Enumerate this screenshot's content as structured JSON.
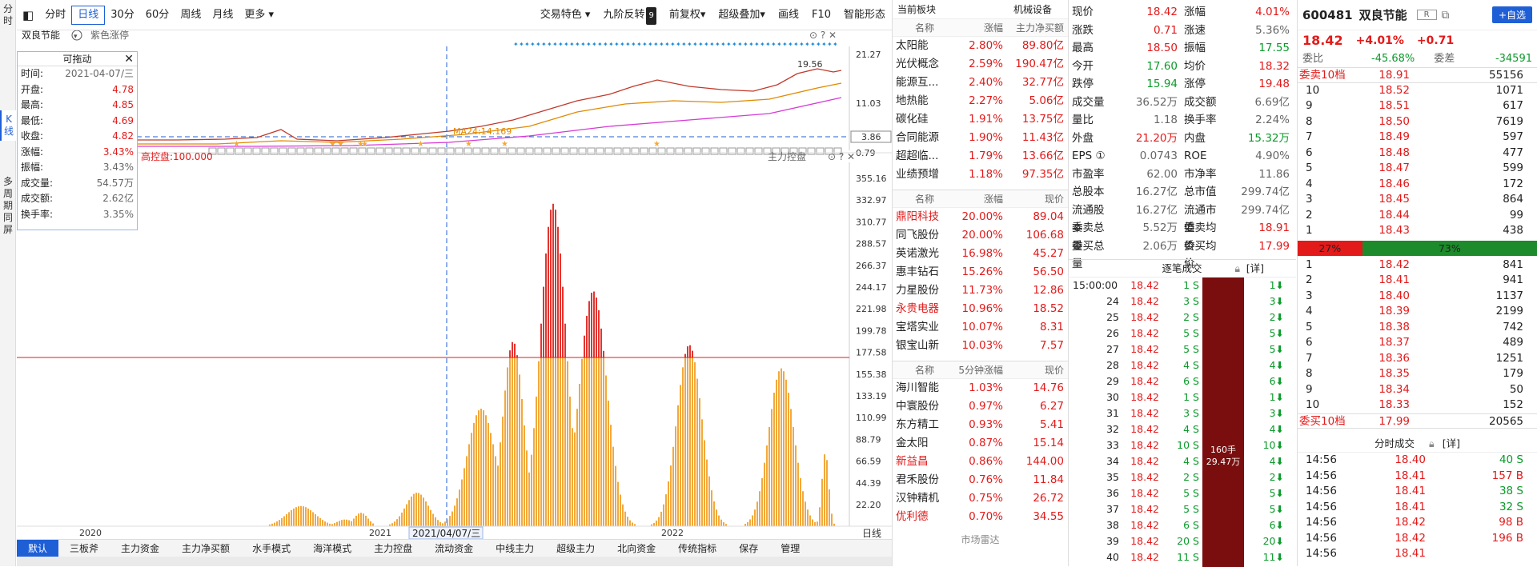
{
  "vtabs": [
    "分时",
    "K线",
    "多周期同屏"
  ],
  "toolbar": {
    "items": [
      "分时",
      "日线",
      "30分",
      "60分",
      "周线",
      "月线",
      "更多"
    ],
    "active": "日线",
    "right": [
      "交易特色",
      "九阶反转",
      "前复权",
      "超级叠加",
      "画线",
      "F10",
      "智能形态"
    ],
    "badge": "9"
  },
  "chart": {
    "stock_name": "双良节能",
    "color_mode": "紫色涨停",
    "price_labels": [
      "21.27",
      "11.03",
      "3.86",
      "0.79"
    ],
    "high_label": "19.56",
    "ma_label": "MA24:14.169",
    "vol_title": "主力控盘",
    "vol_high": "高控盘:100.000",
    "vol_labels": [
      "355.16",
      "332.97",
      "310.77",
      "288.57",
      "266.37",
      "244.17",
      "221.98",
      "199.78",
      "177.58",
      "155.38",
      "133.19",
      "110.99",
      "88.79",
      "66.59",
      "44.39",
      "22.20"
    ],
    "xlabels": [
      "2020",
      "2021",
      "2022"
    ],
    "crosshair_date": "2021/04/07/三",
    "period": "日线"
  },
  "infobox": {
    "title": "可拖动",
    "rows": [
      [
        "时间:",
        "2021-04-07/三",
        "gray"
      ],
      [
        "开盘:",
        "4.78",
        "red"
      ],
      [
        "最高:",
        "4.85",
        "red"
      ],
      [
        "最低:",
        "4.69",
        "red"
      ],
      [
        "收盘:",
        "4.82",
        "red"
      ],
      [
        "涨幅:",
        "3.43%",
        "red"
      ],
      [
        "振幅:",
        "3.43%",
        "gray"
      ],
      [
        "成交量:",
        "54.57万",
        "gray"
      ],
      [
        "成交额:",
        "2.62亿",
        "gray"
      ],
      [
        "换手率:",
        "3.35%",
        "gray"
      ]
    ]
  },
  "bottomtabs": [
    "默认",
    "三板斧",
    "主力资金",
    "主力净买额",
    "水手模式",
    "海洋模式",
    "主力控盘",
    "流动资金",
    "中线主力",
    "超级主力",
    "北向资金",
    "传统指标",
    "保存",
    "管理"
  ],
  "sectors": {
    "title": "当前板块",
    "industry": "机械设备",
    "headers": [
      "名称",
      "涨幅",
      "主力净买额"
    ],
    "rows": [
      [
        "太阳能",
        "2.80%",
        "89.80亿"
      ],
      [
        "光伏概念",
        "2.59%",
        "190.47亿"
      ],
      [
        "能源互...",
        "2.40%",
        "32.77亿"
      ],
      [
        "地热能",
        "2.27%",
        "5.06亿"
      ],
      [
        "碳化硅",
        "1.91%",
        "13.75亿"
      ],
      [
        "合同能源",
        "1.90%",
        "11.43亿"
      ],
      [
        "超超临...",
        "1.79%",
        "13.66亿"
      ],
      [
        "业绩预增",
        "1.18%",
        "97.35亿"
      ]
    ]
  },
  "leaders": {
    "headers": [
      "名称",
      "涨幅",
      "现价"
    ],
    "rows": [
      [
        "鼎阳科技",
        "20.00%",
        "89.04",
        "red"
      ],
      [
        "同飞股份",
        "20.00%",
        "106.68",
        ""
      ],
      [
        "英诺激光",
        "16.98%",
        "45.27",
        ""
      ],
      [
        "惠丰钻石",
        "15.26%",
        "56.50",
        ""
      ],
      [
        "力星股份",
        "11.73%",
        "12.86",
        ""
      ],
      [
        "永贵电器",
        "10.96%",
        "18.52",
        "red"
      ],
      [
        "宝塔实业",
        "10.07%",
        "8.31",
        ""
      ],
      [
        "银宝山新",
        "10.03%",
        "7.57",
        ""
      ]
    ]
  },
  "fivemin": {
    "headers": [
      "名称",
      "5分钟涨幅",
      "现价"
    ],
    "rows": [
      [
        "海川智能",
        "1.03%",
        "14.76",
        ""
      ],
      [
        "中寰股份",
        "0.97%",
        "6.27",
        ""
      ],
      [
        "东方精工",
        "0.93%",
        "5.41",
        ""
      ],
      [
        "金太阳",
        "0.87%",
        "15.14",
        ""
      ],
      [
        "新益昌",
        "0.86%",
        "144.00",
        "red"
      ],
      [
        "君禾股份",
        "0.76%",
        "11.84",
        ""
      ],
      [
        "汉钟精机",
        "0.75%",
        "26.72",
        ""
      ],
      [
        "优利德",
        "0.70%",
        "34.55",
        "red"
      ]
    ]
  },
  "sector_footer": "市场雷达",
  "quote": [
    [
      "现价",
      "18.42",
      "red",
      "涨幅",
      "4.01%",
      "red"
    ],
    [
      "涨跌",
      "0.71",
      "red",
      "涨速",
      "5.36%",
      "gray"
    ],
    [
      "最高",
      "18.50",
      "red",
      "振幅",
      "17.55",
      "green"
    ],
    [
      "今开",
      "17.60",
      "green",
      "均价",
      "18.32",
      "red"
    ],
    [
      "跌停",
      "15.94",
      "green",
      "涨停",
      "19.48",
      "red"
    ],
    [
      "成交量",
      "36.52万",
      "gray",
      "成交额",
      "6.69亿",
      "gray"
    ],
    [
      "量比",
      "1.18",
      "gray",
      "换手率",
      "2.24%",
      "gray"
    ],
    [
      "外盘",
      "21.20万",
      "red",
      "内盘",
      "15.32万",
      "green"
    ],
    [
      "EPS ①",
      "0.0743",
      "gray",
      "ROE",
      "4.90%",
      "gray"
    ],
    [
      "市盈率",
      "62.00",
      "gray",
      "市净率",
      "11.86",
      "gray"
    ],
    [
      "总股本",
      "16.27亿",
      "gray",
      "总市值",
      "299.74亿",
      "gray"
    ],
    [
      "流通股本",
      "16.27亿",
      "gray",
      "流通市值",
      "299.74亿",
      "gray"
    ],
    [
      "委卖总量",
      "5.52万",
      "gray",
      "委卖均价",
      "18.91",
      "red"
    ],
    [
      "委买总量",
      "2.06万",
      "gray",
      "委买均价",
      "17.99",
      "red"
    ]
  ],
  "ticks": {
    "title": "逐笔成交",
    "detail": "[详]",
    "bar_label": "160手",
    "bar_value": "29.47万",
    "rows": [
      [
        "15:00:00",
        "18.42",
        "1 S",
        "1"
      ],
      [
        "24",
        "18.42",
        "3 S",
        "3"
      ],
      [
        "25",
        "18.42",
        "2 S",
        "2"
      ],
      [
        "26",
        "18.42",
        "5 S",
        "5"
      ],
      [
        "27",
        "18.42",
        "5 S",
        "5"
      ],
      [
        "28",
        "18.42",
        "4 S",
        "4"
      ],
      [
        "29",
        "18.42",
        "6 S",
        "6"
      ],
      [
        "30",
        "18.42",
        "1 S",
        "1"
      ],
      [
        "31",
        "18.42",
        "3 S",
        "3"
      ],
      [
        "32",
        "18.42",
        "4 S",
        "4"
      ],
      [
        "33",
        "18.42",
        "10 S",
        "10"
      ],
      [
        "34",
        "18.42",
        "4 S",
        "4"
      ],
      [
        "35",
        "18.42",
        "2 S",
        "2"
      ],
      [
        "36",
        "18.42",
        "5 S",
        "5"
      ],
      [
        "37",
        "18.42",
        "5 S",
        "5"
      ],
      [
        "38",
        "18.42",
        "6 S",
        "6"
      ],
      [
        "39",
        "18.42",
        "20 S",
        "20"
      ],
      [
        "40",
        "18.42",
        "11 S",
        "11"
      ]
    ]
  },
  "stock": {
    "code": "600481",
    "name": "双良节能",
    "tag": "R",
    "add_btn": "+自选",
    "price": "18.42",
    "pct": "+4.01%",
    "chg": "+0.71",
    "webi_label": "委比",
    "webi": "-45.68%",
    "weicha_label": "委差",
    "weicha": "-34591"
  },
  "sell10": {
    "label": "委卖10档",
    "price": "18.91",
    "vol": "55156"
  },
  "asks": [
    [
      "10",
      "18.52",
      "1071"
    ],
    [
      "9",
      "18.51",
      "617"
    ],
    [
      "8",
      "18.50",
      "7619"
    ],
    [
      "7",
      "18.49",
      "597"
    ],
    [
      "6",
      "18.48",
      "477"
    ],
    [
      "5",
      "18.47",
      "599"
    ],
    [
      "4",
      "18.46",
      "172"
    ],
    [
      "3",
      "18.45",
      "864"
    ],
    [
      "2",
      "18.44",
      "99"
    ],
    [
      "1",
      "18.43",
      "438"
    ]
  ],
  "ratio": {
    "red": "27%",
    "green": "73%",
    "red_frac": 0.27
  },
  "bids": [
    [
      "1",
      "18.42",
      "841"
    ],
    [
      "2",
      "18.41",
      "941"
    ],
    [
      "3",
      "18.40",
      "1137"
    ],
    [
      "4",
      "18.39",
      "2199"
    ],
    [
      "5",
      "18.38",
      "742"
    ],
    [
      "6",
      "18.37",
      "489"
    ],
    [
      "7",
      "18.36",
      "1251"
    ],
    [
      "8",
      "18.35",
      "179"
    ],
    [
      "9",
      "18.34",
      "50"
    ],
    [
      "10",
      "18.33",
      "152"
    ]
  ],
  "buy10": {
    "label": "委买10档",
    "price": "17.99",
    "vol": "20565"
  },
  "minute": {
    "title": "分时成交",
    "detail": "[详]",
    "rows": [
      [
        "14:56",
        "18.40",
        "40 S",
        "green"
      ],
      [
        "14:56",
        "18.41",
        "157 B",
        "red"
      ],
      [
        "14:56",
        "18.41",
        "38 S",
        "green"
      ],
      [
        "14:56",
        "18.41",
        "32 S",
        "green"
      ],
      [
        "14:56",
        "18.42",
        "98 B",
        "red"
      ],
      [
        "14:56",
        "18.42",
        "196 B",
        "red"
      ],
      [
        "14:56",
        "18.41",
        "",
        "red"
      ]
    ]
  }
}
